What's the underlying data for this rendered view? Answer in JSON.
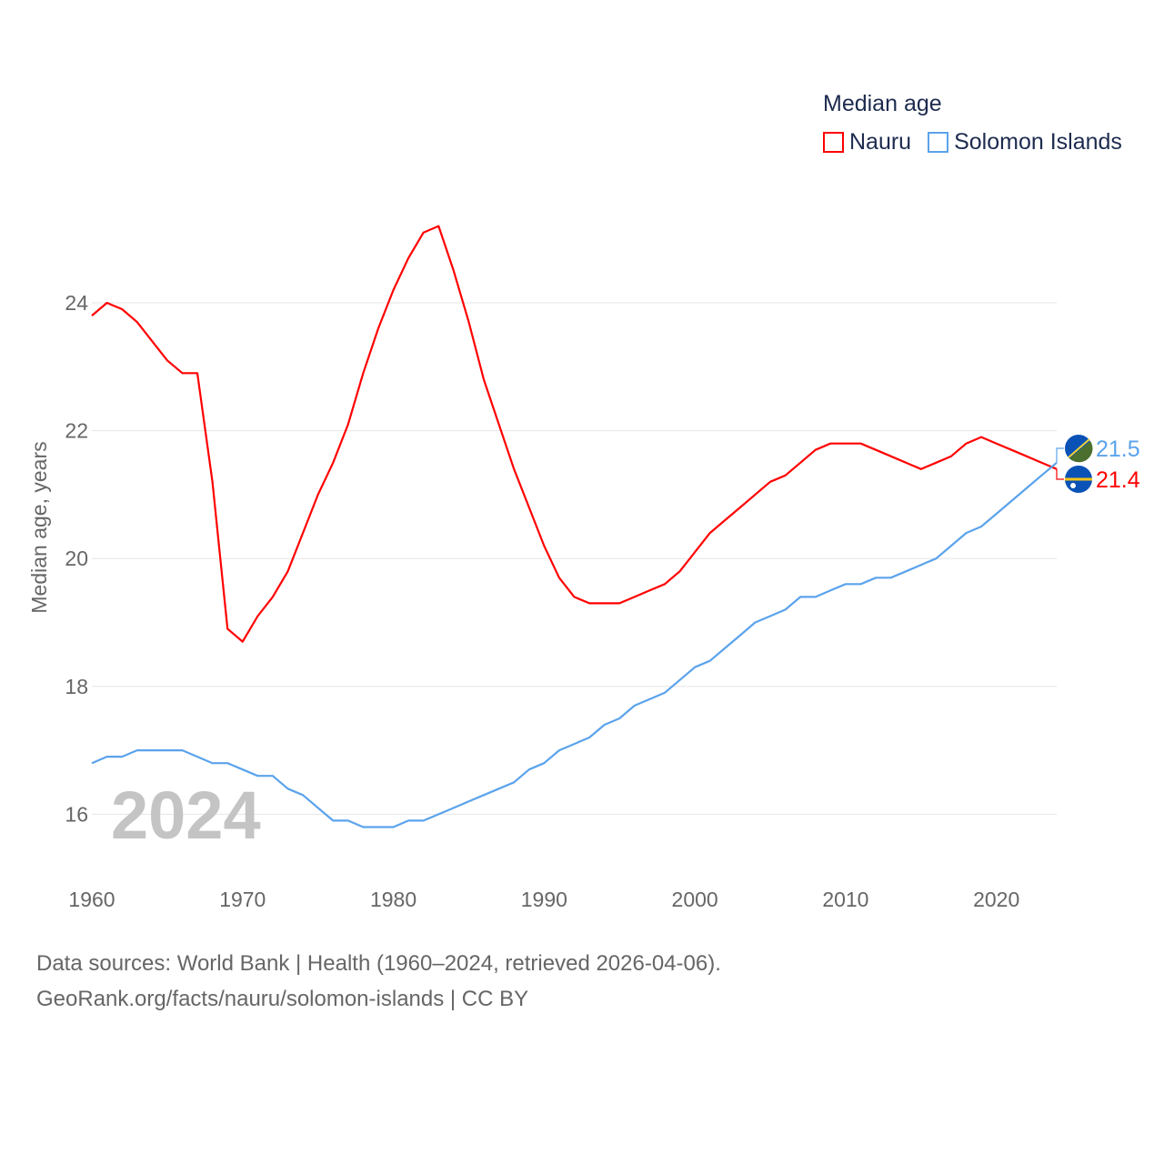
{
  "chart_data": {
    "type": "line",
    "title": "Median age",
    "xlabel": "",
    "ylabel": "Median age, years",
    "xlim": [
      1960,
      2024
    ],
    "ylim": [
      15,
      25.5
    ],
    "yticks": [
      16,
      18,
      20,
      22,
      24
    ],
    "xticks": [
      1960,
      1970,
      1980,
      1990,
      2000,
      2010,
      2020
    ],
    "grid": true,
    "legend_position": "top-right",
    "year_label": "2024",
    "x": [
      1960,
      1961,
      1962,
      1963,
      1964,
      1965,
      1966,
      1967,
      1968,
      1969,
      1970,
      1971,
      1972,
      1973,
      1974,
      1975,
      1976,
      1977,
      1978,
      1979,
      1980,
      1981,
      1982,
      1983,
      1984,
      1985,
      1986,
      1987,
      1988,
      1989,
      1990,
      1991,
      1992,
      1993,
      1994,
      1995,
      1996,
      1997,
      1998,
      1999,
      2000,
      2001,
      2002,
      2003,
      2004,
      2005,
      2006,
      2007,
      2008,
      2009,
      2010,
      2011,
      2012,
      2013,
      2014,
      2015,
      2016,
      2017,
      2018,
      2019,
      2020,
      2021,
      2022,
      2023,
      2024
    ],
    "series": [
      {
        "name": "Nauru",
        "color": "#ff0000",
        "end_label": "21.4",
        "values": [
          23.8,
          24.0,
          23.9,
          23.7,
          23.4,
          23.1,
          22.9,
          22.9,
          21.2,
          18.9,
          18.7,
          19.1,
          19.4,
          19.8,
          20.4,
          21.0,
          21.5,
          22.1,
          22.9,
          23.6,
          24.2,
          24.7,
          25.1,
          25.2,
          24.5,
          23.7,
          22.8,
          22.1,
          21.4,
          20.8,
          20.2,
          19.7,
          19.4,
          19.3,
          19.3,
          19.3,
          19.4,
          19.5,
          19.6,
          19.8,
          20.1,
          20.4,
          20.6,
          20.8,
          21.0,
          21.2,
          21.3,
          21.5,
          21.7,
          21.8,
          21.8,
          21.8,
          21.7,
          21.6,
          21.5,
          21.4,
          21.5,
          21.6,
          21.8,
          21.9,
          21.8,
          21.7,
          21.6,
          21.5,
          21.4
        ]
      },
      {
        "name": "Solomon Islands",
        "color": "#5ba3ec",
        "end_label": "21.5",
        "values": [
          16.8,
          16.9,
          16.9,
          17.0,
          17.0,
          17.0,
          17.0,
          16.9,
          16.8,
          16.8,
          16.7,
          16.6,
          16.6,
          16.4,
          16.3,
          16.1,
          15.9,
          15.9,
          15.8,
          15.8,
          15.8,
          15.9,
          15.9,
          16.0,
          16.1,
          16.2,
          16.3,
          16.4,
          16.5,
          16.7,
          16.8,
          17.0,
          17.1,
          17.2,
          17.4,
          17.5,
          17.7,
          17.8,
          17.9,
          18.1,
          18.3,
          18.4,
          18.6,
          18.8,
          19.0,
          19.1,
          19.2,
          19.4,
          19.4,
          19.5,
          19.6,
          19.6,
          19.7,
          19.7,
          19.8,
          19.9,
          20.0,
          20.2,
          20.4,
          20.5,
          20.7,
          20.9,
          21.1,
          21.3,
          21.5
        ]
      }
    ]
  },
  "footer": {
    "line1": "Data sources: World Bank | Health (1960–2024, retrieved 2026-04-06).",
    "line2": "GeoRank.org/facts/nauru/solomon-islands | CC BY"
  }
}
